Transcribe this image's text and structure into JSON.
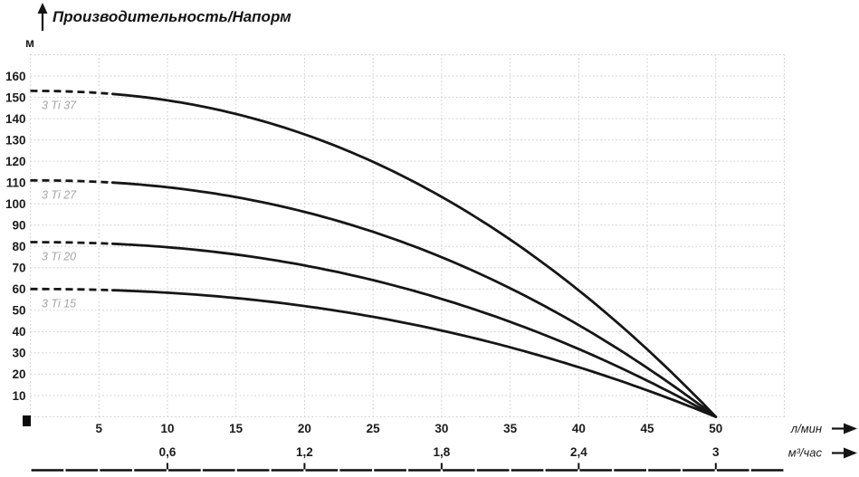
{
  "header": {
    "title": "Производительность/Напорм"
  },
  "axes": {
    "y": {
      "unit": "м",
      "tick_min": 10,
      "tick_max": 160,
      "tick_step": 10
    },
    "x1": {
      "unit": "л/мин",
      "ticks": [
        5,
        10,
        15,
        20,
        25,
        30,
        35,
        40,
        45,
        50
      ]
    },
    "x2": {
      "unit": "м³/час",
      "ticks": [
        {
          "q": 10,
          "label": "0,6"
        },
        {
          "q": 20,
          "label": "1,2"
        },
        {
          "q": 30,
          "label": "1,8"
        },
        {
          "q": 40,
          "label": "2,4"
        },
        {
          "q": 50,
          "label": "3"
        }
      ]
    }
  },
  "colors": {
    "curve": "#161616",
    "grid": "#cccccc",
    "series_label": "#a5a5a5",
    "text": "#1b1b1b"
  },
  "chart_data": {
    "type": "line",
    "title": "Производительность/Напорм",
    "ylabel": "м",
    "xlabel_primary": "л/мин",
    "xlabel_secondary": "м³/час",
    "x_range_lpm": [
      0,
      55
    ],
    "y_range_m": [
      0,
      170
    ],
    "grid": "dotted",
    "legend_position": "inline-left",
    "x_lpm": [
      0,
      5,
      10,
      15,
      20,
      25,
      30,
      35,
      40,
      45,
      50
    ],
    "series": [
      {
        "name": "3 Ti 37",
        "shutoff_head_m": 153,
        "values_m": [
          153,
          152,
          149,
          142,
          133,
          120,
          103,
          83,
          59,
          32,
          0
        ]
      },
      {
        "name": "3 Ti 27",
        "shutoff_head_m": 111,
        "values_m": [
          111,
          110,
          108,
          103,
          96,
          87,
          75,
          60,
          43,
          23,
          0
        ]
      },
      {
        "name": "3 Ti 20",
        "shutoff_head_m": 82,
        "values_m": [
          82,
          81,
          80,
          76,
          71,
          64,
          55,
          45,
          32,
          17,
          0
        ]
      },
      {
        "name": "3 Ti 15",
        "shutoff_head_m": 60,
        "values_m": [
          60,
          60,
          58,
          56,
          52,
          47,
          41,
          33,
          23,
          12,
          0
        ]
      }
    ],
    "fit_exponent": 2.2,
    "qmax_lpm": 50,
    "dashed_lead_in_lpm": [
      0,
      6.2
    ]
  }
}
